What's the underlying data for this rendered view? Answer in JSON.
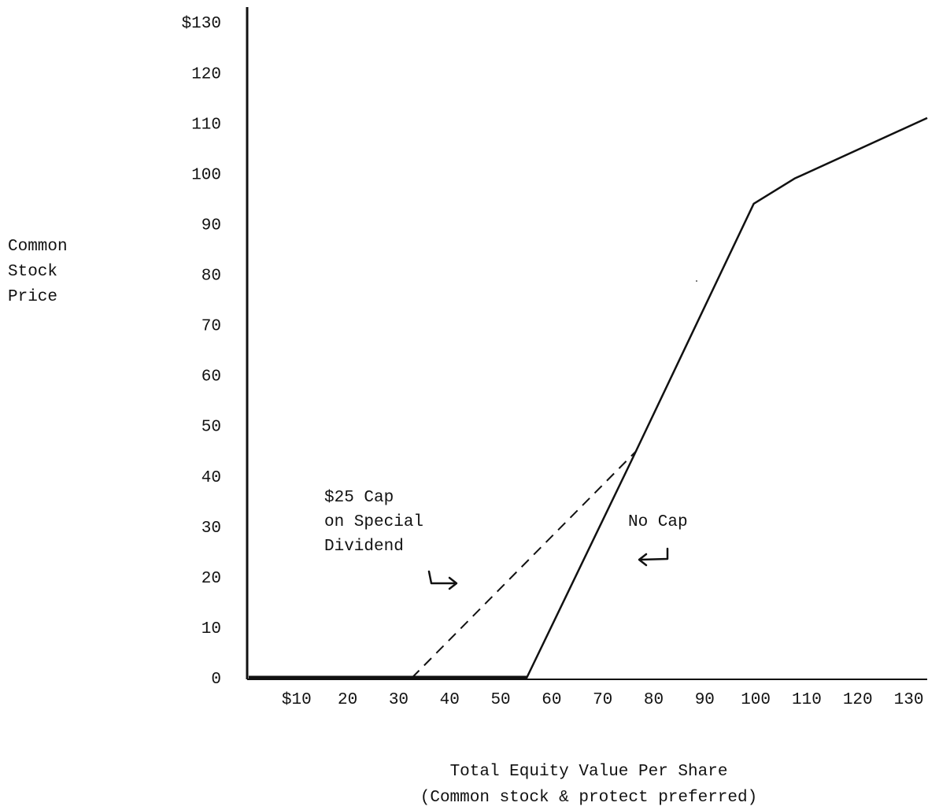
{
  "chart_data": {
    "type": "line",
    "title": "",
    "ylabel": [
      "Common",
      "Stock",
      "Price"
    ],
    "xlabel": [
      "Total Equity Value Per Share",
      "(Common stock & protect preferred)"
    ],
    "xlim": [
      0,
      133
    ],
    "ylim": [
      0,
      133
    ],
    "y_ticks": [
      {
        "v": 0,
        "label": "0"
      },
      {
        "v": 10,
        "label": "10"
      },
      {
        "v": 20,
        "label": "20"
      },
      {
        "v": 30,
        "label": "30"
      },
      {
        "v": 40,
        "label": "40"
      },
      {
        "v": 50,
        "label": "50"
      },
      {
        "v": 60,
        "label": "60"
      },
      {
        "v": 70,
        "label": "70"
      },
      {
        "v": 80,
        "label": "80"
      },
      {
        "v": 90,
        "label": "90"
      },
      {
        "v": 100,
        "label": "100"
      },
      {
        "v": 110,
        "label": "110"
      },
      {
        "v": 120,
        "label": "120"
      },
      {
        "v": 130,
        "label": "$130"
      }
    ],
    "x_ticks": [
      {
        "v": 10,
        "label": "$10"
      },
      {
        "v": 20,
        "label": "20"
      },
      {
        "v": 30,
        "label": "30"
      },
      {
        "v": 40,
        "label": "40"
      },
      {
        "v": 50,
        "label": "50"
      },
      {
        "v": 60,
        "label": "60"
      },
      {
        "v": 70,
        "label": "70"
      },
      {
        "v": 80,
        "label": "80"
      },
      {
        "v": 90,
        "label": "90"
      },
      {
        "v": 100,
        "label": "100"
      },
      {
        "v": 110,
        "label": "110"
      },
      {
        "v": 120,
        "label": "120"
      },
      {
        "v": 130,
        "label": "130"
      }
    ],
    "series": [
      {
        "name": "No Cap",
        "style": "solid",
        "points": [
          [
            0,
            0
          ],
          [
            54.5,
            0
          ],
          [
            75,
            43
          ],
          [
            99,
            94
          ],
          [
            107,
            99
          ],
          [
            133,
            111
          ]
        ]
      },
      {
        "name": "$25 Cap on Special Dividend",
        "style": "dashed",
        "points": [
          [
            32,
            0
          ],
          [
            76,
            45
          ]
        ]
      }
    ],
    "annotations": [
      {
        "lines": [
          "$25 Cap",
          "on Special",
          "Dividend"
        ],
        "arrow": "right"
      },
      {
        "lines": [
          "No Cap"
        ],
        "arrow": "left"
      }
    ],
    "grid": false,
    "colors": {
      "ink": "#111111",
      "background": "#ffffff"
    }
  }
}
